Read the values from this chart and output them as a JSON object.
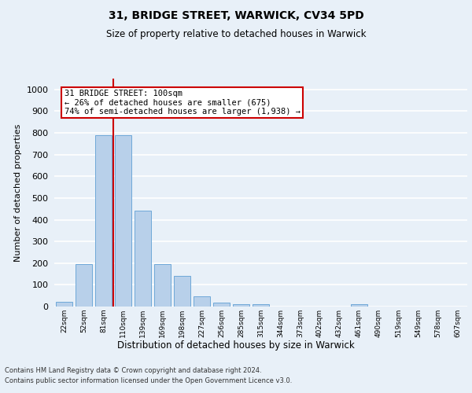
{
  "title1": "31, BRIDGE STREET, WARWICK, CV34 5PD",
  "title2": "Size of property relative to detached houses in Warwick",
  "xlabel": "Distribution of detached houses by size in Warwick",
  "ylabel": "Number of detached properties",
  "categories": [
    "22sqm",
    "52sqm",
    "81sqm",
    "110sqm",
    "139sqm",
    "169sqm",
    "198sqm",
    "227sqm",
    "256sqm",
    "285sqm",
    "315sqm",
    "344sqm",
    "373sqm",
    "402sqm",
    "432sqm",
    "461sqm",
    "490sqm",
    "519sqm",
    "549sqm",
    "578sqm",
    "607sqm"
  ],
  "values": [
    20,
    195,
    790,
    790,
    440,
    195,
    140,
    48,
    18,
    12,
    12,
    0,
    0,
    0,
    0,
    10,
    0,
    0,
    0,
    0,
    0
  ],
  "bar_color": "#b8d0ea",
  "bar_edge_color": "#6ea8d8",
  "background_color": "#e8f0f8",
  "fig_background_color": "#e8f0f8",
  "grid_color": "#ffffff",
  "vline_color": "#cc0000",
  "vline_x_index": 2.5,
  "annotation_text": "31 BRIDGE STREET: 100sqm\n← 26% of detached houses are smaller (675)\n74% of semi-detached houses are larger (1,938) →",
  "annotation_box_color": "#ffffff",
  "annotation_box_edge": "#cc0000",
  "ylim": [
    0,
    1050
  ],
  "yticks": [
    0,
    100,
    200,
    300,
    400,
    500,
    600,
    700,
    800,
    900,
    1000
  ],
  "footer_line1": "Contains HM Land Registry data © Crown copyright and database right 2024.",
  "footer_line2": "Contains public sector information licensed under the Open Government Licence v3.0."
}
